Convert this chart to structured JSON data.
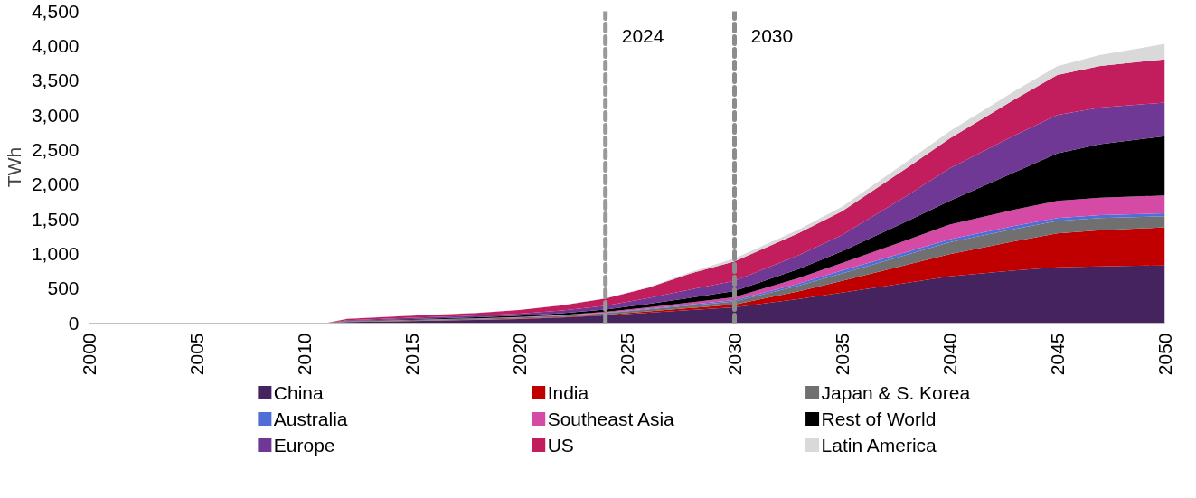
{
  "chart_data": {
    "type": "area",
    "stacked": true,
    "ylabel": "TWh",
    "x": [
      2000,
      2011,
      2012,
      2015,
      2018,
      2020,
      2022,
      2024,
      2026,
      2028,
      2030,
      2033,
      2035,
      2038,
      2040,
      2043,
      2045,
      2047,
      2050
    ],
    "series": [
      {
        "name": "China",
        "color": "#45235e",
        "values": [
          0,
          0,
          15,
          30,
          45,
          60,
          80,
          110,
          150,
          190,
          227,
          350,
          440,
          580,
          675,
          760,
          804,
          820,
          833
        ]
      },
      {
        "name": "India",
        "color": "#c00000",
        "values": [
          0,
          0,
          2,
          3,
          4,
          5,
          8,
          12,
          20,
          30,
          42,
          110,
          171,
          260,
          321,
          420,
          491,
          520,
          548
        ]
      },
      {
        "name": "Japan & S. Korea",
        "color": "#707070",
        "values": [
          0,
          0,
          8,
          12,
          14,
          15,
          18,
          22,
          28,
          35,
          43,
          80,
          107,
          145,
          171,
          178,
          179,
          175,
          161
        ]
      },
      {
        "name": "Australia",
        "color": "#4f6fd6",
        "values": [
          0,
          0,
          2,
          2,
          3,
          3,
          4,
          6,
          10,
          15,
          21,
          32,
          43,
          42,
          42,
          43,
          43,
          44,
          44
        ]
      },
      {
        "name": "Southeast Asia",
        "color": "#d54aa5",
        "values": [
          0,
          0,
          2,
          3,
          4,
          5,
          8,
          12,
          20,
          30,
          43,
          80,
          107,
          170,
          214,
          235,
          248,
          252,
          256
        ]
      },
      {
        "name": "Rest of World",
        "color": "#000000",
        "values": [
          0,
          0,
          5,
          10,
          15,
          20,
          25,
          35,
          50,
          68,
          86,
          130,
          170,
          270,
          342,
          540,
          684,
          770,
          854
        ]
      },
      {
        "name": "Europe",
        "color": "#6f3894",
        "values": [
          0,
          0,
          10,
          18,
          25,
          30,
          40,
          55,
          85,
          120,
          149,
          200,
          235,
          370,
          470,
          530,
          555,
          530,
          487
        ]
      },
      {
        "name": "US",
        "color": "#c21d5c",
        "values": [
          0,
          0,
          18,
          30,
          38,
          50,
          75,
          105,
          150,
          232,
          278,
          320,
          342,
          400,
          428,
          520,
          577,
          600,
          624
        ]
      },
      {
        "name": "Latin America",
        "color": "#d9d9d9",
        "values": [
          0,
          0,
          2,
          2,
          2,
          2,
          2,
          3,
          7,
          20,
          43,
          50,
          64,
          90,
          106,
          120,
          128,
          160,
          222
        ]
      }
    ],
    "xlim": [
      2000,
      2050
    ],
    "xticks": [
      2000,
      2005,
      2010,
      2015,
      2020,
      2025,
      2030,
      2035,
      2040,
      2045,
      2050
    ],
    "ylim": [
      0,
      4500
    ],
    "yticks": [
      0,
      {
        "value": 500,
        "label": "500"
      },
      {
        "value": 1000,
        "label": "1,000"
      },
      {
        "value": 1500,
        "label": "1,500"
      },
      {
        "value": 2000,
        "label": "2,000"
      },
      {
        "value": 2500,
        "label": "2,500"
      },
      {
        "value": 3000,
        "label": "3,000"
      },
      {
        "value": 3500,
        "label": "3,500"
      },
      {
        "value": 4000,
        "label": "4,000"
      },
      {
        "value": 4500,
        "label": "4,500"
      }
    ],
    "ref_lines": [
      {
        "axis": "x",
        "value": 2024,
        "label": "2024",
        "color": "#999999",
        "line_style": "dashed"
      },
      {
        "axis": "x",
        "value": 2030,
        "label": "2030",
        "color": "#8c8c8c",
        "line_style": "dashed"
      }
    ],
    "grid": false,
    "legend": "bottom"
  }
}
